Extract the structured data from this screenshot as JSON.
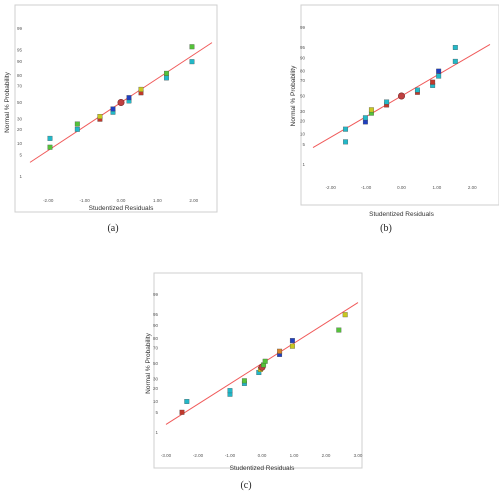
{
  "colors": {
    "fit_line": "#f05a5a",
    "frame": "#cfcfcf",
    "center_marker": "#c04040",
    "palette": {
      "red": "#c0392b",
      "blue": "#1f3fbf",
      "cyan": "#22b8c8",
      "green": "#55c23a",
      "yellow": "#c9c820",
      "orange": "#d8812a"
    }
  },
  "chart_data": [
    {
      "type": "scatter",
      "caption": "(a)",
      "title": "",
      "xlabel": "Studentized Residuals",
      "ylabel": "Normal % Probability",
      "xlim": [
        -2.5,
        2.5
      ],
      "x_ticks": [
        -2.0,
        -1.0,
        0.0,
        1.0,
        2.0
      ],
      "x_tick_labels": [
        "-2.00",
        "-1.00",
        "0.00",
        "1.00",
        "2.00"
      ],
      "y_ticks": [
        1,
        5,
        10,
        20,
        30,
        50,
        70,
        80,
        90,
        95,
        99
      ],
      "y_tick_labels": [
        "1",
        "5",
        "10",
        "20",
        "30",
        "50",
        "70",
        "80",
        "90",
        "95",
        "99"
      ],
      "y_scale": "normal-probability",
      "grid": false,
      "fit_line": {
        "x": [
          -2.5,
          2.5
        ],
        "y": [
          3,
          97
        ]
      },
      "points": [
        {
          "x": -1.95,
          "y": 8,
          "color": "green"
        },
        {
          "x": -1.95,
          "y": 13,
          "color": "cyan"
        },
        {
          "x": -1.2,
          "y": 20,
          "color": "cyan"
        },
        {
          "x": -1.2,
          "y": 25,
          "color": "green"
        },
        {
          "x": -0.58,
          "y": 30,
          "color": "red"
        },
        {
          "x": -0.58,
          "y": 33,
          "color": "yellow"
        },
        {
          "x": -0.22,
          "y": 38,
          "color": "cyan"
        },
        {
          "x": -0.22,
          "y": 42,
          "color": "blue"
        },
        {
          "x": 0.0,
          "y": 50,
          "color": "center"
        },
        {
          "x": 0.22,
          "y": 52,
          "color": "cyan"
        },
        {
          "x": 0.22,
          "y": 56,
          "color": "blue"
        },
        {
          "x": 0.55,
          "y": 62,
          "color": "red"
        },
        {
          "x": 0.55,
          "y": 66,
          "color": "yellow"
        },
        {
          "x": 1.25,
          "y": 78,
          "color": "cyan"
        },
        {
          "x": 1.25,
          "y": 82,
          "color": "green"
        },
        {
          "x": 1.95,
          "y": 90,
          "color": "cyan"
        },
        {
          "x": 1.95,
          "y": 96,
          "color": "green"
        }
      ]
    },
    {
      "type": "scatter",
      "caption": "(b)",
      "title": "",
      "xlabel": "Studentized Residuals",
      "ylabel": "Normal % Probability",
      "xlim": [
        -2.5,
        2.5
      ],
      "x_ticks": [
        -2.0,
        -1.0,
        0.0,
        1.0,
        2.0
      ],
      "x_tick_labels": [
        "-2.00",
        "-1.00",
        "0.00",
        "1.00",
        "2.00"
      ],
      "y_ticks": [
        1,
        5,
        10,
        20,
        30,
        50,
        70,
        80,
        90,
        95,
        99
      ],
      "y_tick_labels": [
        "1",
        "5",
        "10",
        "20",
        "30",
        "50",
        "70",
        "80",
        "90",
        "95",
        "99"
      ],
      "y_scale": "normal-probability",
      "grid": false,
      "fit_line": {
        "x": [
          -2.5,
          2.5
        ],
        "y": [
          4,
          96
        ]
      },
      "points": [
        {
          "x": -1.58,
          "y": 6,
          "color": "cyan"
        },
        {
          "x": -1.58,
          "y": 13,
          "color": "cyan"
        },
        {
          "x": -1.02,
          "y": 19,
          "color": "blue"
        },
        {
          "x": -1.02,
          "y": 23,
          "color": "cyan"
        },
        {
          "x": -0.85,
          "y": 28,
          "color": "green"
        },
        {
          "x": -0.85,
          "y": 32,
          "color": "yellow"
        },
        {
          "x": -0.42,
          "y": 38,
          "color": "red"
        },
        {
          "x": -0.42,
          "y": 42,
          "color": "cyan"
        },
        {
          "x": 0.0,
          "y": 50,
          "color": "center"
        },
        {
          "x": 0.45,
          "y": 55,
          "color": "red"
        },
        {
          "x": 0.45,
          "y": 58,
          "color": "cyan"
        },
        {
          "x": 0.88,
          "y": 64,
          "color": "cyan"
        },
        {
          "x": 0.88,
          "y": 68,
          "color": "red"
        },
        {
          "x": 1.05,
          "y": 75,
          "color": "cyan"
        },
        {
          "x": 1.05,
          "y": 80,
          "color": "blue"
        },
        {
          "x": 1.52,
          "y": 88,
          "color": "cyan"
        },
        {
          "x": 1.52,
          "y": 95,
          "color": "cyan"
        }
      ]
    },
    {
      "type": "scatter",
      "caption": "(c)",
      "title": "",
      "xlabel": "Studentized Residuals",
      "ylabel": "Normal % Probability",
      "xlim": [
        -3.0,
        3.0
      ],
      "x_ticks": [
        -3.0,
        -2.0,
        -1.0,
        0.0,
        1.0,
        2.0,
        3.0
      ],
      "x_tick_labels": [
        "-3.00",
        "-2.00",
        "-1.00",
        "0.00",
        "1.00",
        "2.00",
        "3.00"
      ],
      "y_ticks": [
        1,
        5,
        10,
        20,
        30,
        50,
        70,
        80,
        90,
        95,
        99
      ],
      "y_tick_labels": [
        "1",
        "5",
        "10",
        "20",
        "30",
        "50",
        "70",
        "80",
        "90",
        "95",
        "99"
      ],
      "y_scale": "normal-probability",
      "grid": false,
      "fit_line": {
        "x": [
          -3.0,
          3.0
        ],
        "y": [
          2,
          98
        ]
      },
      "points": [
        {
          "x": -2.5,
          "y": 5,
          "color": "red"
        },
        {
          "x": -2.35,
          "y": 10,
          "color": "cyan"
        },
        {
          "x": -1.0,
          "y": 15,
          "color": "cyan"
        },
        {
          "x": -1.0,
          "y": 18,
          "color": "cyan"
        },
        {
          "x": -0.55,
          "y": 25,
          "color": "cyan"
        },
        {
          "x": -0.55,
          "y": 28,
          "color": "green"
        },
        {
          "x": -0.1,
          "y": 38,
          "color": "cyan"
        },
        {
          "x": -0.05,
          "y": 42,
          "color": "yellow"
        },
        {
          "x": 0.0,
          "y": 45,
          "color": "center"
        },
        {
          "x": 0.05,
          "y": 48,
          "color": "green"
        },
        {
          "x": 0.1,
          "y": 53,
          "color": "green"
        },
        {
          "x": 0.55,
          "y": 62,
          "color": "blue"
        },
        {
          "x": 0.55,
          "y": 66,
          "color": "orange"
        },
        {
          "x": 0.95,
          "y": 72,
          "color": "yellow"
        },
        {
          "x": 0.95,
          "y": 78,
          "color": "blue"
        },
        {
          "x": 2.4,
          "y": 87,
          "color": "green"
        },
        {
          "x": 2.6,
          "y": 95,
          "color": "yellow"
        }
      ]
    }
  ]
}
